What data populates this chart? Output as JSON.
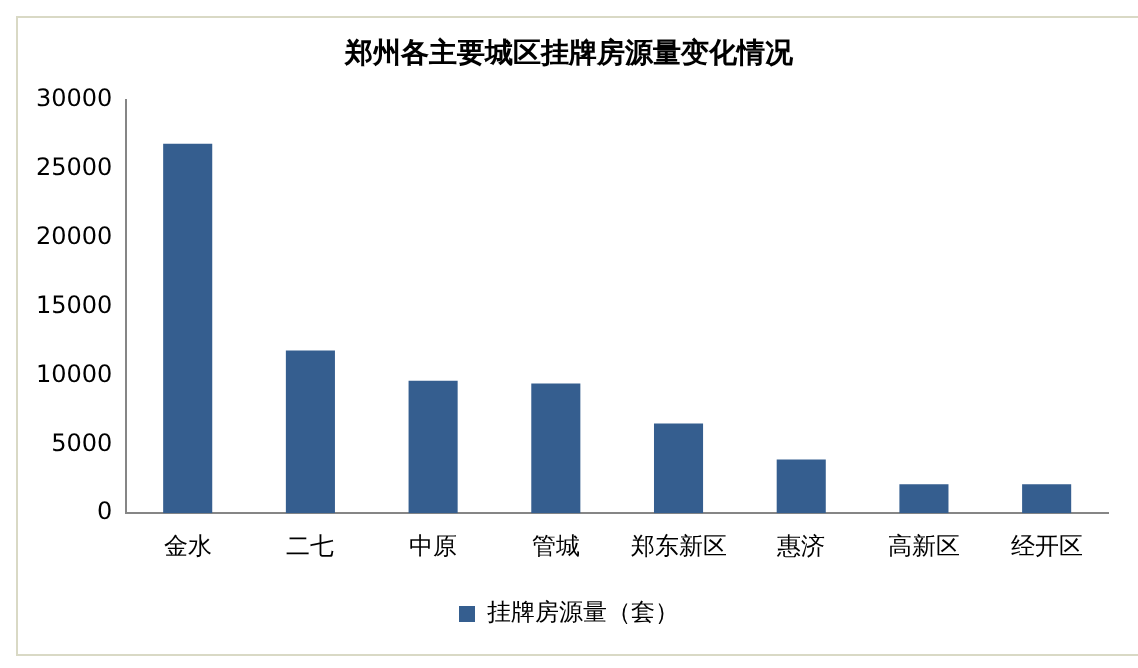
{
  "chart_data": {
    "type": "bar",
    "title": "郑州各主要城区挂牌房源量变化情况",
    "categories": [
      "金水",
      "二七",
      "中原",
      "管城",
      "郑东新区",
      "惠济",
      "高新区",
      "经开区"
    ],
    "series": [
      {
        "name": "挂牌房源量（套）",
        "color": "#355e8f",
        "values": [
          26800,
          11800,
          9600,
          9400,
          6500,
          3900,
          2100,
          2100
        ]
      }
    ],
    "ylim": [
      0,
      30000
    ],
    "yticks": [
      0,
      5000,
      10000,
      15000,
      20000,
      25000,
      30000
    ],
    "grid": false,
    "legend": "bottom"
  }
}
